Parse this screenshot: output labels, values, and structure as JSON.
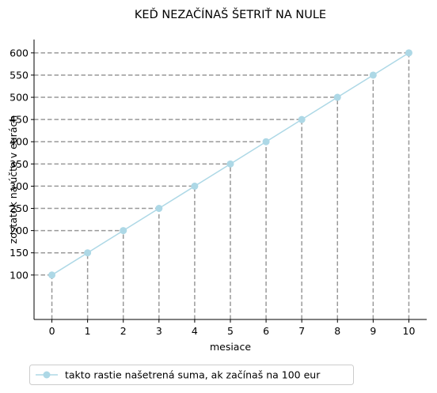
{
  "chart_data": {
    "type": "line",
    "title": "KEĎ NEZAČÍNAŠ ŠETRIŤ NA NULE",
    "xlabel": "mesiace",
    "ylabel": "zostatok na účte v eurách",
    "x": [
      0,
      1,
      2,
      3,
      4,
      5,
      6,
      7,
      8,
      9,
      10
    ],
    "xlim": [
      -0.5,
      10.5
    ],
    "ylim": [
      0,
      630
    ],
    "yticks": [
      100,
      150,
      200,
      250,
      300,
      350,
      400,
      450,
      500,
      550,
      600
    ],
    "grid": false,
    "guide_lines": "dashed gray lines from each point to both axes",
    "legend_position": "below chart, left",
    "series": [
      {
        "name": "takto rastie našetrená suma, ak začínaš na 100 eur",
        "values": [
          100,
          150,
          200,
          250,
          300,
          350,
          400,
          450,
          500,
          550,
          600
        ],
        "color": "#add8e6",
        "marker": "circle"
      }
    ],
    "colors": {
      "guide": "#999999",
      "axis": "#000000"
    }
  }
}
